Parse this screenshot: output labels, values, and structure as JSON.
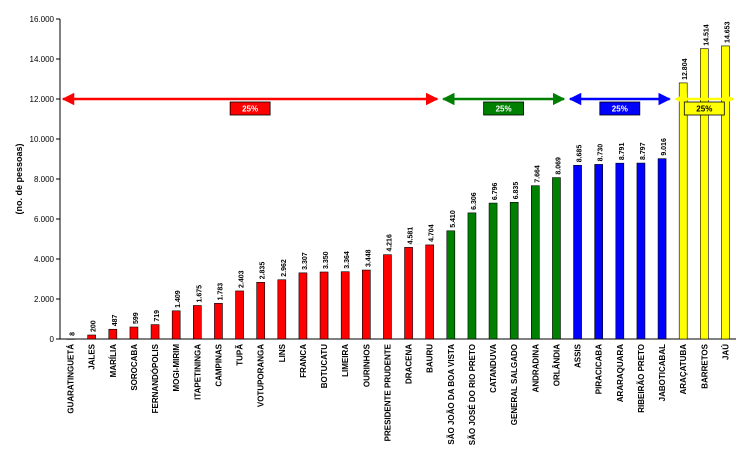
{
  "chart_data": {
    "type": "bar",
    "ylabel": "(no. de pessoas)",
    "ylim": [
      0,
      16000
    ],
    "yticks": [
      "0",
      "2.000",
      "4.000",
      "6.000",
      "8.000",
      "10.000",
      "12.000",
      "14.000",
      "16.000"
    ],
    "categories": [
      "GUARATINGUETÁ",
      "JALES",
      "MARÍLIA",
      "SOROCABA",
      "FERNANDÓPOLIS",
      "MOGI-MIRIM",
      "ITAPETININGA",
      "CAMPINAS",
      "TUPÃ",
      "VOTUPORANGA",
      "LINS",
      "FRANCA",
      "BOTUCATU",
      "LIMEIRA",
      "OURINHOS",
      "PRESIDENTE PRUDENTE",
      "DRACENA",
      "BAURU",
      "SÃO JOÃO DA BOA VISTA",
      "SÃO JOSÉ DO RIO PRETO",
      "CATANDUVA",
      "GENERAL SALGADO",
      "ANDRADINA",
      "ORLÂNDIA",
      "ASSIS",
      "PIRACICABA",
      "ARARAQUARA",
      "RIBEIRÃO PRETO",
      "JABOTICABAL",
      "ARAÇATUBA",
      "BARRETOS",
      "JAÚ"
    ],
    "values": [
      8,
      200,
      487,
      599,
      719,
      1409,
      1675,
      1783,
      2403,
      2835,
      2962,
      3307,
      3350,
      3364,
      3448,
      4216,
      4581,
      4704,
      5410,
      6306,
      6796,
      6835,
      7664,
      8069,
      8685,
      8730,
      8791,
      8797,
      9016,
      12804,
      14514,
      14653
    ],
    "value_labels": [
      "8",
      "200",
      "487",
      "599",
      "719",
      "1.409",
      "1.675",
      "1.783",
      "2.403",
      "2.835",
      "2.962",
      "3.307",
      "3.350",
      "3.364",
      "3.448",
      "4.216",
      "4.581",
      "4.704",
      "5.410",
      "6.306",
      "6.796",
      "6.835",
      "7.664",
      "8.069",
      "8.685",
      "8.730",
      "8.791",
      "8.797",
      "9.016",
      "12.804",
      "14.514",
      "14.653"
    ],
    "groups": [
      {
        "label": "25%",
        "color": "#ff0000",
        "start": 0,
        "end": 17
      },
      {
        "label": "25%",
        "color": "#008000",
        "start": 18,
        "end": 23
      },
      {
        "label": "25%",
        "color": "#0000ff",
        "start": 24,
        "end": 28
      },
      {
        "label": "25%",
        "color": "#ffff00",
        "start": 29,
        "end": 31
      }
    ],
    "bracket_level": 12000,
    "grid": false,
    "legend": "none"
  }
}
